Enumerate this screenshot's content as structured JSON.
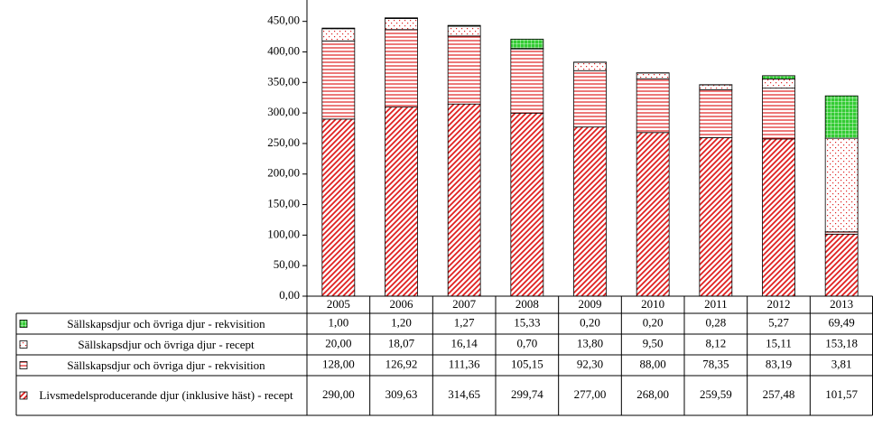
{
  "chart_data": {
    "type": "stacked_bar",
    "categories": [
      "2005",
      "2006",
      "2007",
      "2008",
      "2009",
      "2010",
      "2011",
      "2012",
      "2013"
    ],
    "ylim": [
      0,
      485
    ],
    "yticks": [
      {
        "value": 0,
        "label": "0,00"
      },
      {
        "value": 50,
        "label": "50,00"
      },
      {
        "value": 100,
        "label": "100,00"
      },
      {
        "value": 150,
        "label": "150,00"
      },
      {
        "value": 200,
        "label": "200,00"
      },
      {
        "value": 250,
        "label": "250,00"
      },
      {
        "value": 300,
        "label": "300,00"
      },
      {
        "value": 350,
        "label": "350,00"
      },
      {
        "value": 400,
        "label": "400,00"
      },
      {
        "value": 450,
        "label": "450,00"
      }
    ],
    "series": [
      {
        "name": "Livsmedelsproducerande djur (inklusive häst) - recept",
        "color": "#e02020",
        "pattern": "diagonal",
        "values": [
          290,
          309.63,
          314.65,
          299.74,
          277,
          268,
          259.59,
          257.48,
          101.57
        ],
        "value_labels": [
          "290,00",
          "309,63",
          "314,65",
          "299,74",
          "277,00",
          "268,00",
          "259,59",
          "257,48",
          "101,57"
        ]
      },
      {
        "name": "Sällskapsdjur och övriga djur - rekvisition",
        "color": "#e02020",
        "pattern": "horizontal",
        "values": [
          128,
          126.92,
          111.36,
          105.15,
          92.3,
          88,
          78.35,
          83.19,
          3.81
        ],
        "value_labels": [
          "128,00",
          "126,92",
          "111,36",
          "105,15",
          "92,30",
          "88,00",
          "78,35",
          "83,19",
          "3,81"
        ]
      },
      {
        "name": "Sällskapsdjur och övriga djur - recept",
        "color": "#e02020",
        "pattern": "dots",
        "values": [
          20,
          18.07,
          16.14,
          0.7,
          13.8,
          9.5,
          8.12,
          15.11,
          153.18
        ],
        "value_labels": [
          "20,00",
          "18,07",
          "16,14",
          "0,70",
          "13,80",
          "9,50",
          "8,12",
          "15,11",
          "153,18"
        ]
      },
      {
        "name": "Sällskapsdjur och övriga djur - rekvisition",
        "color": "#33cc33",
        "pattern": "grid",
        "values": [
          1,
          1.2,
          1.27,
          15.33,
          0.2,
          0.2,
          0.28,
          5.27,
          69.49
        ],
        "value_labels": [
          "1,00",
          "1,20",
          "1,27",
          "15,33",
          "0,20",
          "0,20",
          "0,28",
          "5,27",
          "69,49"
        ]
      }
    ]
  }
}
